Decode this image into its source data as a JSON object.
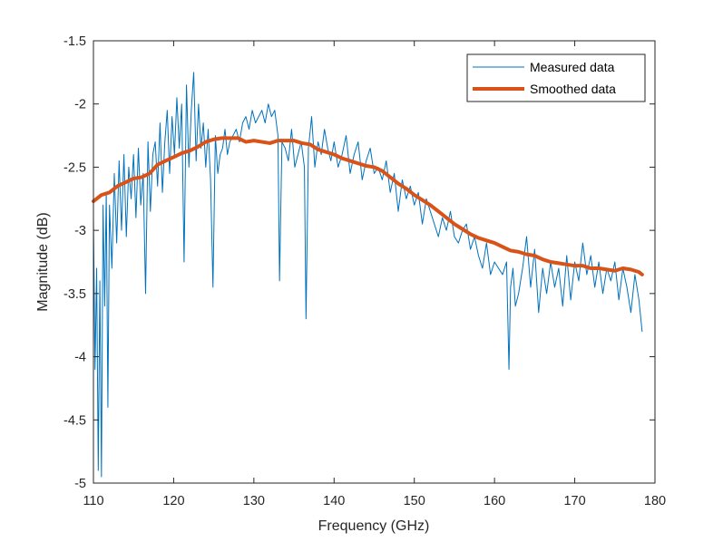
{
  "chart_data": {
    "type": "line",
    "title": "",
    "xlabel": "Frequency (GHz)",
    "ylabel": "Magnitude (dB)",
    "xlim": [
      110,
      180
    ],
    "ylim": [
      -5,
      -1.5
    ],
    "x_ticks": [
      110,
      120,
      130,
      140,
      150,
      160,
      170,
      180
    ],
    "x_tick_labels": [
      "110",
      "120",
      "130",
      "140",
      "150",
      "160",
      "170",
      "180"
    ],
    "y_ticks": [
      -1.5,
      -2,
      -2.5,
      -3,
      -3.5,
      -4,
      -4.5,
      -5
    ],
    "y_tick_labels": [
      "-1.5",
      "-2",
      "-2.5",
      "-3",
      "-3.5",
      "-4",
      "-4.5",
      "-5"
    ],
    "grid": false,
    "legend_position": "top-right",
    "series": [
      {
        "name": "Measured data",
        "color": "#0072BD",
        "style": "thin",
        "x": [
          110.0,
          110.2,
          110.4,
          110.6,
          110.8,
          111.0,
          111.2,
          111.4,
          111.6,
          111.8,
          112.0,
          112.3,
          112.6,
          112.9,
          113.2,
          113.5,
          113.8,
          114.1,
          114.4,
          114.7,
          115.0,
          115.3,
          115.6,
          115.9,
          116.2,
          116.5,
          116.8,
          117.1,
          117.4,
          117.7,
          118.0,
          118.3,
          118.6,
          118.9,
          119.2,
          119.5,
          119.8,
          120.1,
          120.4,
          120.7,
          121.0,
          121.3,
          121.6,
          121.9,
          122.2,
          122.5,
          122.8,
          123.1,
          123.4,
          123.7,
          124.0,
          124.3,
          124.6,
          124.9,
          125.2,
          125.5,
          125.8,
          126.1,
          126.4,
          126.7,
          127.0,
          127.4,
          127.8,
          128.2,
          128.6,
          129.0,
          129.4,
          129.8,
          130.2,
          130.6,
          131.0,
          131.4,
          131.8,
          132.2,
          132.6,
          133.0,
          133.2,
          133.5,
          133.9,
          134.3,
          134.7,
          135.1,
          135.5,
          135.9,
          136.3,
          136.5,
          136.8,
          137.2,
          137.6,
          138.0,
          138.4,
          138.8,
          139.2,
          139.6,
          140.0,
          140.5,
          141.0,
          141.5,
          142.0,
          142.5,
          143.0,
          143.5,
          144.0,
          144.5,
          145.0,
          145.5,
          146.0,
          146.5,
          147.0,
          147.5,
          148.0,
          148.5,
          149.0,
          149.5,
          150.0,
          150.5,
          151.0,
          151.5,
          152.0,
          152.5,
          153.0,
          153.5,
          154.0,
          154.5,
          155.0,
          155.5,
          156.0,
          156.5,
          157.0,
          157.5,
          158.0,
          158.5,
          159.0,
          159.5,
          160.0,
          160.5,
          161.0,
          161.5,
          161.8,
          162.0,
          162.3,
          162.6,
          163.0,
          163.5,
          164.0,
          164.5,
          165.0,
          165.5,
          166.0,
          166.5,
          167.0,
          167.5,
          168.0,
          168.5,
          169.0,
          169.5,
          170.0,
          170.5,
          171.0,
          171.5,
          172.0,
          172.5,
          173.0,
          173.5,
          174.0,
          174.5,
          175.0,
          175.5,
          176.0,
          176.5,
          177.0,
          177.5,
          178.0,
          178.4
        ],
        "values": [
          -2.9,
          -4.1,
          -3.3,
          -4.9,
          -3.4,
          -4.95,
          -2.8,
          -3.6,
          -2.7,
          -4.4,
          -2.8,
          -3.3,
          -2.55,
          -3.1,
          -2.45,
          -3.0,
          -2.4,
          -3.05,
          -2.5,
          -2.75,
          -2.4,
          -2.9,
          -2.35,
          -2.8,
          -2.55,
          -3.5,
          -2.3,
          -2.85,
          -2.4,
          -2.3,
          -2.65,
          -2.15,
          -2.7,
          -2.3,
          -2.05,
          -2.55,
          -2.1,
          -2.4,
          -1.95,
          -2.35,
          -2.0,
          -3.25,
          -1.85,
          -2.5,
          -2.05,
          -1.75,
          -2.45,
          -2.0,
          -2.35,
          -2.15,
          -2.5,
          -2.2,
          -2.6,
          -3.45,
          -2.25,
          -2.55,
          -2.4,
          -2.35,
          -2.2,
          -2.4,
          -2.3,
          -2.25,
          -2.2,
          -2.3,
          -2.15,
          -2.1,
          -2.2,
          -2.05,
          -2.15,
          -2.1,
          -2.05,
          -2.15,
          -2.0,
          -2.1,
          -2.05,
          -2.25,
          -3.4,
          -2.3,
          -2.35,
          -2.45,
          -2.2,
          -2.5,
          -2.4,
          -2.3,
          -2.5,
          -3.7,
          -2.35,
          -2.1,
          -2.5,
          -2.3,
          -2.4,
          -2.2,
          -2.35,
          -2.45,
          -2.3,
          -2.5,
          -2.4,
          -2.25,
          -2.55,
          -2.4,
          -2.3,
          -2.6,
          -2.45,
          -2.35,
          -2.55,
          -2.5,
          -2.6,
          -2.45,
          -2.7,
          -2.55,
          -2.85,
          -2.6,
          -2.75,
          -2.65,
          -2.8,
          -2.7,
          -2.95,
          -2.75,
          -2.85,
          -2.95,
          -3.05,
          -2.9,
          -3.0,
          -2.85,
          -3.05,
          -3.1,
          -3.0,
          -2.95,
          -3.15,
          -3.05,
          -3.2,
          -3.3,
          -3.1,
          -3.35,
          -3.25,
          -3.3,
          -3.35,
          -3.25,
          -4.1,
          -3.45,
          -3.3,
          -3.6,
          -3.5,
          -3.3,
          -3.05,
          -3.45,
          -3.15,
          -3.65,
          -3.3,
          -3.5,
          -3.25,
          -3.45,
          -3.3,
          -3.6,
          -3.2,
          -3.55,
          -3.25,
          -3.4,
          -3.1,
          -3.35,
          -3.2,
          -3.45,
          -3.25,
          -3.5,
          -3.3,
          -3.4,
          -3.25,
          -3.55,
          -3.3,
          -3.45,
          -3.65,
          -3.35,
          -3.55,
          -3.8
        ]
      },
      {
        "name": "Smoothed data",
        "color": "#D95319",
        "style": "thick",
        "x": [
          110,
          111,
          112,
          113,
          114,
          115,
          116,
          117,
          118,
          119,
          120,
          121,
          122,
          123,
          124,
          125,
          126,
          127,
          128,
          129,
          130,
          131,
          132,
          133,
          134,
          135,
          136,
          137,
          138,
          139,
          140,
          141,
          142,
          143,
          144,
          145,
          146,
          147,
          148,
          149,
          150,
          151,
          152,
          153,
          154,
          155,
          156,
          157,
          158,
          159,
          160,
          161,
          162,
          163,
          164,
          165,
          166,
          167,
          168,
          169,
          170,
          171,
          172,
          173,
          174,
          175,
          176,
          177,
          178,
          178.4
        ],
        "values": [
          -2.77,
          -2.72,
          -2.7,
          -2.65,
          -2.62,
          -2.59,
          -2.58,
          -2.55,
          -2.48,
          -2.45,
          -2.42,
          -2.39,
          -2.37,
          -2.34,
          -2.3,
          -2.28,
          -2.27,
          -2.27,
          -2.27,
          -2.3,
          -2.29,
          -2.3,
          -2.31,
          -2.29,
          -2.29,
          -2.29,
          -2.31,
          -2.32,
          -2.36,
          -2.38,
          -2.4,
          -2.43,
          -2.45,
          -2.47,
          -2.49,
          -2.5,
          -2.53,
          -2.58,
          -2.63,
          -2.67,
          -2.72,
          -2.76,
          -2.8,
          -2.85,
          -2.9,
          -2.95,
          -2.99,
          -3.03,
          -3.06,
          -3.08,
          -3.1,
          -3.13,
          -3.16,
          -3.17,
          -3.19,
          -3.2,
          -3.23,
          -3.25,
          -3.26,
          -3.27,
          -3.28,
          -3.28,
          -3.3,
          -3.3,
          -3.31,
          -3.32,
          -3.3,
          -3.31,
          -3.33,
          -3.35
        ]
      }
    ]
  }
}
